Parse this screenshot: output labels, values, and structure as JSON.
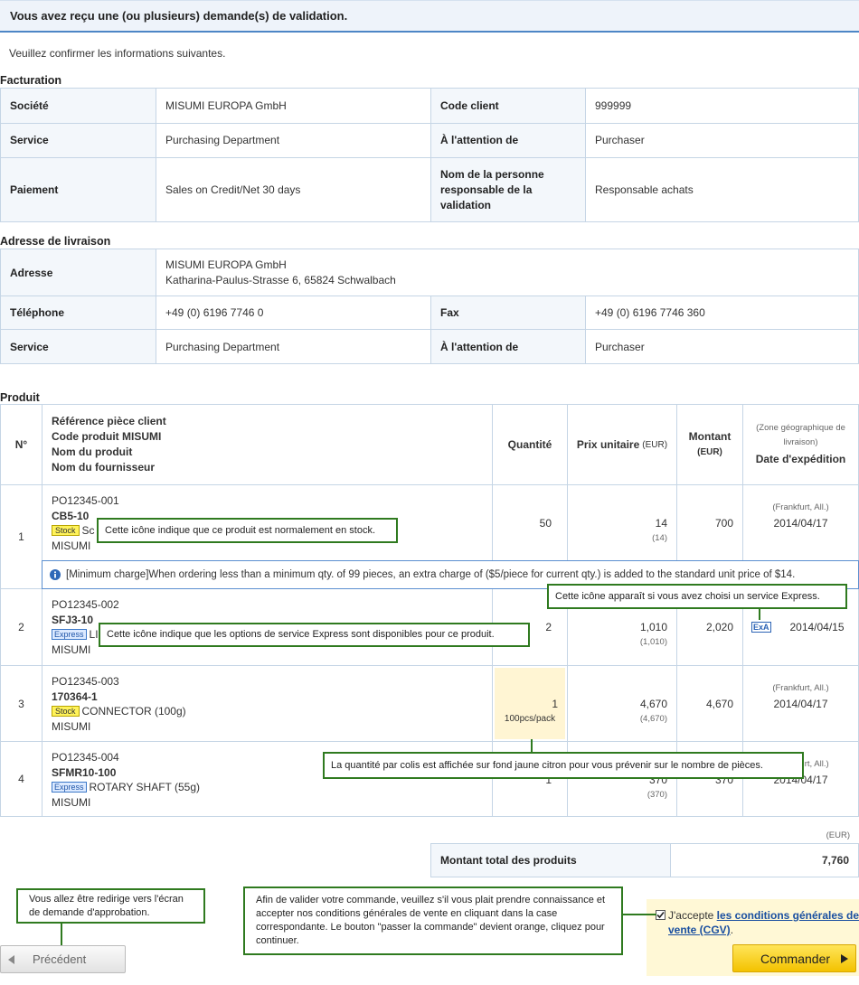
{
  "header": {
    "title": "Vous avez reçu une (ou plusieurs) demande(s) de validation.",
    "intro": "Veuillez confirmer les informations suivantes."
  },
  "billing": {
    "title": "Facturation",
    "rows": [
      [
        "Société",
        "MISUMI EUROPA GmbH",
        "Code client",
        "999999"
      ],
      [
        "Service",
        "Purchasing Department",
        "À l'attention de",
        "Purchaser"
      ],
      [
        "Paiement",
        "Sales on Credit/Net 30 days",
        "Nom de la personne responsable de la validation",
        "Responsable achats"
      ]
    ]
  },
  "shipping": {
    "title": "Adresse de livraison",
    "address": {
      "label": "Adresse",
      "lines": [
        "MISUMI EUROPA GmbH",
        "Katharina-Paulus-Strasse 6, 65824 Schwalbach"
      ]
    },
    "rows": [
      [
        "Téléphone",
        "+49 (0) 6196 7746 0",
        "Fax",
        "+49 (0) 6196 7746 360"
      ],
      [
        "Service",
        "Purchasing Department",
        "À l'attention de",
        "Purchaser"
      ]
    ]
  },
  "products": {
    "title": "Produit",
    "headers": {
      "no": "N°",
      "item": [
        "Référence pièce client",
        "Code produit MISUMI",
        "Nom du produit",
        "Nom du fournisseur"
      ],
      "qty": "Quantité",
      "price": "Prix unitaire",
      "price_unit": "(EUR)",
      "amount": "Montant",
      "amount_unit": "(EUR)",
      "zone": "(Zone géographique de livraison)",
      "date": "Date d'expédition"
    },
    "rows": [
      {
        "no": "1",
        "ref": "PO12345-001",
        "code": "CB5-10",
        "badge": "Stock",
        "name": "Sc",
        "supplier": "MISUMI",
        "qty": "50",
        "price": "14",
        "price_sub": "(14)",
        "amount": "700",
        "zone": "(Frankfurt, All.)",
        "date": "2014/04/17"
      },
      {
        "no": "2",
        "ref": "PO12345-002",
        "code": "SFJ3-10",
        "badge": "Express",
        "name": "LIN",
        "supplier": "MISUMI",
        "qty": "2",
        "price": "1,010",
        "price_sub": "(1,010)",
        "amount": "2,020",
        "icon": "ExA",
        "date": "2014/04/15"
      },
      {
        "no": "3",
        "ref": "PO12345-003",
        "code": "170364-1",
        "badge": "Stock",
        "name": "CONNECTOR (100g)",
        "supplier": "MISUMI",
        "qty": "1",
        "pack": "100pcs/pack",
        "price": "4,670",
        "price_sub": "(4,670)",
        "amount": "4,670",
        "zone": "(Frankfurt, All.)",
        "date": "2014/04/17"
      },
      {
        "no": "4",
        "ref": "PO12345-004",
        "code": "SFMR10-100",
        "badge": "Express",
        "name": "ROTARY SHAFT (55g)",
        "supplier": "MISUMI",
        "qty": "1",
        "price": "370",
        "price_sub": "(370)",
        "amount": "370",
        "zone": "(Frankfurt, All.)",
        "date": "2014/04/17"
      }
    ],
    "note": "[Minimum charge]When ordering less than a minimum qty. of 99 pieces, an extra charge of ($5/piece for current qty.) is added to the standard unit price of $14."
  },
  "total": {
    "unit": "(EUR)",
    "label": "Montant total des produits",
    "value": "7,760"
  },
  "callouts": [
    "Cette icône indique que ce produit est normalement en stock.",
    "Cette icône apparaît si vous avez choisi un service Express.",
    "Cette icône indique que les options de service Express sont disponibles pour ce produit.",
    "La quantité par colis est affichée sur fond jaune citron pour vous prévenir sur le nombre de pièces.",
    "Vous allez être redirige vers l'écran de demande d'approbation.",
    "Afin de valider votre commande, veuillez s'il vous plait prendre connaissance et accepter nos conditions générales de vente en cliquant dans la case correspondante. Le bouton \"passer la commande\" devient orange, cliquez pour continuer."
  ],
  "footer": {
    "back": "Précédent",
    "accept": "J'accepte ",
    "terms": "les conditions générales de vente (CGV)",
    "period": ".",
    "submit": "Commander"
  }
}
